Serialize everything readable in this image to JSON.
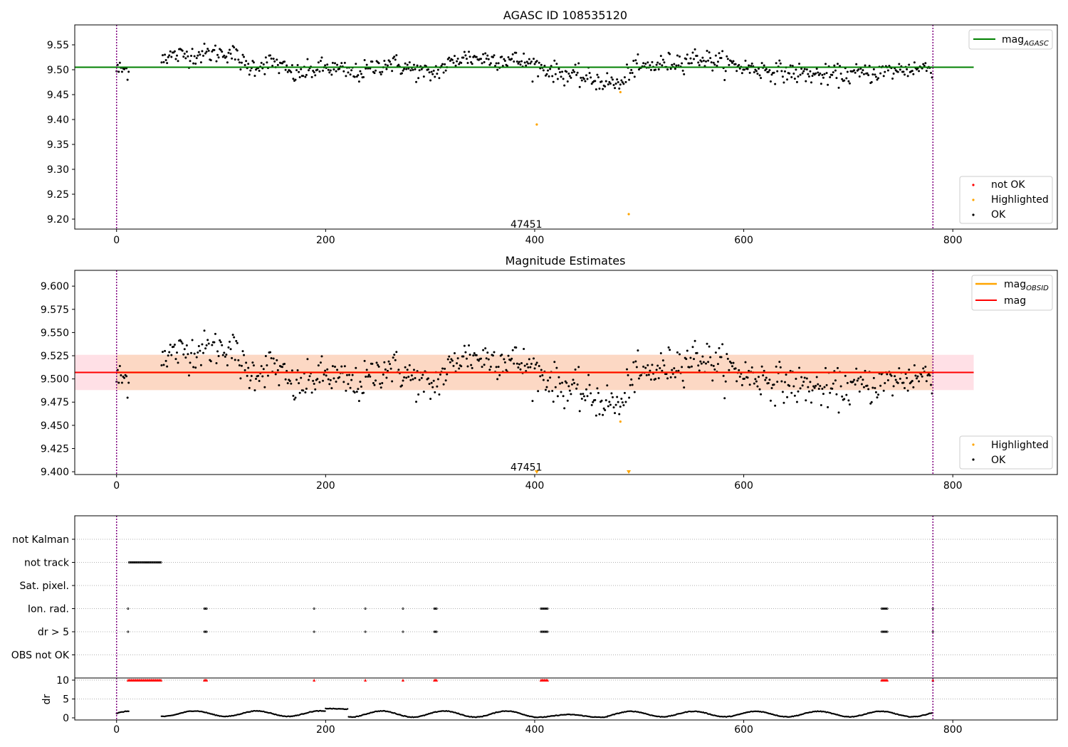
{
  "chart_data": [
    {
      "type": "scatter",
      "title": "AGASC ID 108535120",
      "xlim": [
        -40,
        900
      ],
      "ylim": [
        9.18,
        9.59
      ],
      "xticks": [
        "0",
        "200",
        "400",
        "600",
        "800"
      ],
      "yticks": [
        "9.20",
        "9.25",
        "9.30",
        "9.35",
        "9.40",
        "9.45",
        "9.50",
        "9.55"
      ],
      "grid": false,
      "vlines": [
        0,
        781
      ],
      "annotation": {
        "text": "47451",
        "x": 392,
        "y": 9.19
      },
      "hline": {
        "name": "mag_AGASC",
        "value": 9.505,
        "x": [
          -40,
          820
        ],
        "color": "#008000"
      },
      "legend_top": {
        "position": "top-right",
        "entries": [
          {
            "label": "mag",
            "sub": "AGASC",
            "color": "#008000"
          }
        ]
      },
      "legend_bottom": {
        "position": "bottom-right",
        "entries": [
          {
            "label": "not OK",
            "color": "#ff0000"
          },
          {
            "label": "Highlighted",
            "color": "#ffa500"
          },
          {
            "label": "OK",
            "color": "#000000"
          }
        ]
      },
      "highlighted_points": [
        {
          "x": 402,
          "y": 9.39
        },
        {
          "x": 482,
          "y": 9.455
        },
        {
          "x": 490,
          "y": 9.21
        }
      ]
    },
    {
      "type": "scatter",
      "title": "Magnitude Estimates",
      "xlim": [
        -40,
        900
      ],
      "ylim": [
        9.397,
        9.617
      ],
      "xticks": [
        "0",
        "200",
        "400",
        "600",
        "800"
      ],
      "yticks": [
        "9.400",
        "9.425",
        "9.450",
        "9.475",
        "9.500",
        "9.525",
        "9.550",
        "9.575",
        "9.600"
      ],
      "grid": false,
      "vlines": [
        0,
        781
      ],
      "annotation": {
        "text": "47451",
        "x": 392,
        "y": 9.405
      },
      "mag_line": {
        "name": "mag",
        "value": 9.507,
        "x": [
          -40,
          820
        ],
        "color": "#ff0000"
      },
      "mag_band": {
        "low": 9.488,
        "high": 9.526,
        "x": [
          -40,
          820
        ],
        "color": "#ffe0e6"
      },
      "obsid_line": {
        "name": "mag_OBSID",
        "value": 9.507,
        "x": [
          0,
          781
        ],
        "color": "#ffa500"
      },
      "obsid_band": {
        "low": 9.488,
        "high": 9.526,
        "x": [
          0,
          781
        ],
        "color": "#fcd8c4"
      },
      "legend_top": {
        "position": "top-right",
        "entries": [
          {
            "label": "mag",
            "sub": "OBSID",
            "color": "#ffa500"
          },
          {
            "label": "mag",
            "sub": "",
            "color": "#ff0000"
          }
        ]
      },
      "legend_bottom": {
        "position": "bottom-right",
        "entries": [
          {
            "label": "Highlighted",
            "color": "#ffa500"
          },
          {
            "label": "OK",
            "color": "#000000"
          }
        ]
      },
      "highlighted_points": [
        {
          "x": 482,
          "y": 9.454
        }
      ],
      "lower_limit_markers": [
        {
          "x": 402
        },
        {
          "x": 490
        }
      ]
    },
    {
      "type": "scatter",
      "title": "",
      "xlim": [
        -40,
        900
      ],
      "xticks": [
        "0",
        "200",
        "400",
        "600",
        "800"
      ],
      "vlines": [
        0,
        781
      ],
      "flag_rows": [
        "not Kalman",
        "not track",
        "Sat. pixel.",
        "Ion. rad.",
        "dr > 5",
        "OBS not OK"
      ],
      "flags": {
        "not track": [
          [
            12,
            43
          ]
        ],
        "Ion. rad.": [
          [
            11,
            11
          ],
          [
            84,
            87
          ],
          [
            189,
            189
          ],
          [
            238,
            238
          ],
          [
            274,
            274
          ],
          [
            304,
            307
          ],
          [
            406,
            413
          ],
          [
            732,
            738
          ],
          [
            781,
            781
          ]
        ],
        "dr > 5": [
          [
            11,
            11
          ],
          [
            84,
            87
          ],
          [
            189,
            189
          ],
          [
            238,
            238
          ],
          [
            274,
            274
          ],
          [
            304,
            307
          ],
          [
            406,
            413
          ],
          [
            732,
            738
          ],
          [
            781,
            781
          ]
        ]
      },
      "dr": {
        "ylabel": "dr",
        "ylim": [
          0,
          10
        ],
        "yticks": [
          "0",
          "5",
          "10"
        ],
        "clipped_markers": [
          [
            11,
            43
          ],
          [
            84,
            87
          ],
          [
            189,
            189
          ],
          [
            238,
            238
          ],
          [
            274,
            274
          ],
          [
            304,
            307
          ],
          [
            406,
            413
          ],
          [
            732,
            738
          ],
          [
            781,
            781
          ]
        ],
        "segments": [
          {
            "x": [
              0,
              12
            ],
            "y0": 1.2,
            "amp": 0.7
          },
          {
            "x": [
              43,
              200
            ],
            "y0": 1.1,
            "amp": 0.8
          },
          {
            "x": [
              200,
              222
            ],
            "y0": 2.4,
            "amp": 0.1
          },
          {
            "x": [
              222,
              400
            ],
            "y0": 1.0,
            "amp": 0.9
          },
          {
            "x": [
              400,
              470
            ],
            "y0": 0.5,
            "amp": 0.4
          },
          {
            "x": [
              470,
              781
            ],
            "y0": 1.0,
            "amp": 0.8
          }
        ]
      }
    }
  ]
}
